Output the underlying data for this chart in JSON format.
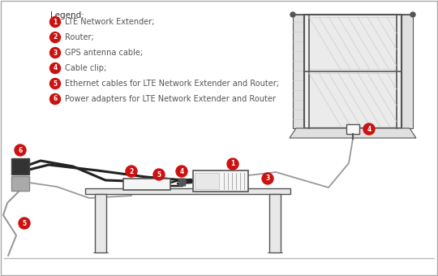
{
  "bg_color": "#ffffff",
  "border_color": "#aaaaaa",
  "legend_title": "Legend:",
  "legend_items": [
    {
      "num": "1",
      "text": "LTE Network Extender;"
    },
    {
      "num": "2",
      "text": "Router;"
    },
    {
      "num": "3",
      "text": "GPS antenna cable;"
    },
    {
      "num": "4",
      "text": "Cable clip;"
    },
    {
      "num": "5",
      "text": "Ethernet cables for LTE Network Extender and Router;"
    },
    {
      "num": "6",
      "text": "Power adapters for LTE Network Extender and Router"
    }
  ],
  "circle_color": "#cc1111",
  "text_color": "#555555",
  "line_color": "#555555",
  "cable_color": "#222222",
  "gray_cable_color": "#999999",
  "device_color": "#f2f2f2",
  "table_color": "#e8e8e8",
  "window_color": "#f0f0f0",
  "curtain_color": "#e0e0e0"
}
